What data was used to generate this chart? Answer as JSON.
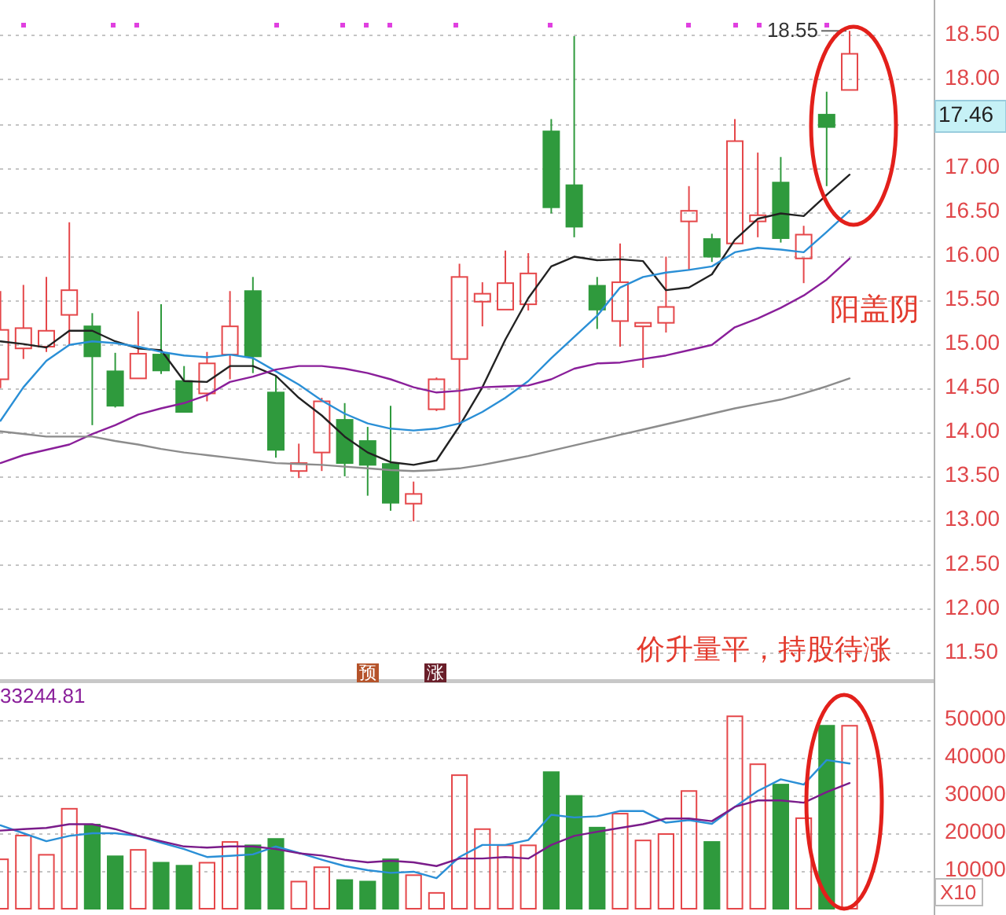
{
  "chart_data": [
    {
      "type": "candlestick",
      "categories": [
        null,
        null,
        null,
        null,
        null,
        null,
        null,
        null,
        null,
        null,
        null,
        null,
        null,
        null,
        null,
        null,
        null,
        null,
        null,
        null,
        null,
        null,
        null,
        null,
        null,
        null,
        null,
        null,
        null,
        null,
        null,
        null,
        null,
        null,
        null,
        null,
        null,
        null
      ],
      "ohlc": [
        [
          14.6,
          15.6,
          14.5,
          15.16
        ],
        [
          14.95,
          15.67,
          14.83,
          15.18
        ],
        [
          14.97,
          15.76,
          14.91,
          15.15
        ],
        [
          15.33,
          16.38,
          14.99,
          15.61
        ],
        [
          15.2,
          15.35,
          14.08,
          14.86
        ],
        [
          14.69,
          14.9,
          14.28,
          14.3
        ],
        [
          14.61,
          15.37,
          14.61,
          14.89
        ],
        [
          14.88,
          15.45,
          14.66,
          14.7
        ],
        [
          14.58,
          14.75,
          14.23,
          14.23
        ],
        [
          14.44,
          14.91,
          14.35,
          14.78
        ],
        [
          14.88,
          15.6,
          14.6,
          15.2
        ],
        [
          15.6,
          15.76,
          14.67,
          14.86
        ],
        [
          14.45,
          14.64,
          13.71,
          13.8
        ],
        [
          13.56,
          13.87,
          13.48,
          13.65
        ],
        [
          13.77,
          14.39,
          13.56,
          14.35
        ],
        [
          14.14,
          14.33,
          13.5,
          13.65
        ],
        [
          13.9,
          14.06,
          13.28,
          13.63
        ],
        [
          13.64,
          14.3,
          13.11,
          13.2
        ],
        [
          13.19,
          13.44,
          12.99,
          13.3
        ],
        [
          14.26,
          14.62,
          14.24,
          14.6
        ],
        [
          14.83,
          15.91,
          14.07,
          15.76
        ],
        [
          15.48,
          15.7,
          15.2,
          15.57
        ],
        [
          15.39,
          16.06,
          15.39,
          15.69
        ],
        [
          15.45,
          16.03,
          15.38,
          15.8
        ],
        [
          17.41,
          17.55,
          16.48,
          16.55
        ],
        [
          16.8,
          18.49,
          16.21,
          16.33
        ],
        [
          15.66,
          15.76,
          15.17,
          15.39
        ],
        [
          15.26,
          16.14,
          14.97,
          15.7
        ],
        [
          15.2,
          15.24,
          14.73,
          15.24
        ],
        [
          15.24,
          15.99,
          15.13,
          15.42
        ],
        [
          16.39,
          16.79,
          15.84,
          16.51
        ],
        [
          16.19,
          16.25,
          15.93,
          15.99
        ],
        [
          16.14,
          17.55,
          16.14,
          17.3
        ],
        [
          16.39,
          17.17,
          16.21,
          16.46
        ],
        [
          16.83,
          17.12,
          16.15,
          16.2
        ],
        [
          15.97,
          16.34,
          15.69,
          16.24
        ],
        [
          17.6,
          17.86,
          16.79,
          17.46
        ],
        [
          17.88,
          18.55,
          17.88,
          18.29
        ]
      ],
      "colors": [
        "#e5474a",
        "#e5474a",
        "#e5474a",
        "#e5474a",
        "#2f9a3d",
        "#2f9a3d",
        "#e5474a",
        "#2f9a3d",
        "#2f9a3d",
        "#e5474a",
        "#e5474a",
        "#2f9a3d",
        "#2f9a3d",
        "#e5474a",
        "#e5474a",
        "#2f9a3d",
        "#2f9a3d",
        "#2f9a3d",
        "#e5474a",
        "#e5474a",
        "#e5474a",
        "#e5474a",
        "#e5474a",
        "#e5474a",
        "#2f9a3d",
        "#2f9a3d",
        "#2f9a3d",
        "#e5474a",
        "#e5474a",
        "#e5474a",
        "#e5474a",
        "#2f9a3d",
        "#e5474a",
        "#e5474a",
        "#2f9a3d",
        "#e5474a",
        "#2f9a3d",
        "#e5474a"
      ],
      "series": [
        {
          "type": "line",
          "color": "#222222",
          "values": [
            15.03,
            15.0,
            14.96,
            15.15,
            15.15,
            15.03,
            14.95,
            14.93,
            14.58,
            14.57,
            14.75,
            14.75,
            14.64,
            14.39,
            14.19,
            13.95,
            13.77,
            13.66,
            13.63,
            13.68,
            14.07,
            14.51,
            15.05,
            15.52,
            15.88,
            15.99,
            15.95,
            15.96,
            15.94,
            15.61,
            15.64,
            15.79,
            16.18,
            16.42,
            16.48,
            16.45,
            16.69,
            16.92
          ]
        },
        {
          "type": "line",
          "color": "#2a8fd6",
          "values": [
            14.13,
            14.51,
            14.81,
            14.99,
            15.03,
            15.01,
            14.97,
            14.91,
            14.87,
            14.85,
            14.88,
            14.84,
            14.69,
            14.54,
            14.36,
            14.21,
            14.1,
            14.04,
            14.02,
            14.04,
            14.1,
            14.23,
            14.39,
            14.58,
            14.84,
            15.08,
            15.32,
            15.64,
            15.76,
            15.81,
            15.84,
            15.88,
            16.04,
            16.09,
            16.07,
            16.04,
            16.27,
            16.51
          ]
        },
        {
          "type": "line",
          "color": "#8a1f9a",
          "values": [
            13.65,
            13.74,
            13.8,
            13.86,
            13.98,
            14.08,
            14.2,
            14.27,
            14.33,
            14.42,
            14.57,
            14.63,
            14.71,
            14.75,
            14.75,
            14.72,
            14.67,
            14.6,
            14.51,
            14.45,
            14.47,
            14.51,
            14.52,
            14.53,
            14.6,
            14.72,
            14.78,
            14.79,
            14.83,
            14.87,
            14.93,
            14.99,
            15.19,
            15.29,
            15.41,
            15.55,
            15.73,
            15.97
          ]
        },
        {
          "type": "line",
          "color": "#8c8c8c",
          "values": [
            14.01,
            13.98,
            13.95,
            13.95,
            13.95,
            13.9,
            13.86,
            13.81,
            13.77,
            13.74,
            13.71,
            13.68,
            13.65,
            13.64,
            13.63,
            13.61,
            13.59,
            13.57,
            13.56,
            13.57,
            13.59,
            13.63,
            13.68,
            13.73,
            13.79,
            13.85,
            13.91,
            13.97,
            14.03,
            14.09,
            14.15,
            14.21,
            14.27,
            14.32,
            14.37,
            14.44,
            14.52,
            14.61
          ]
        }
      ],
      "ylim": [
        11.2,
        18.9
      ],
      "yticks": [
        {
          "value": 11.5,
          "label": "11.50"
        },
        {
          "value": 12,
          "label": "12.00"
        },
        {
          "value": 12.5,
          "label": "12.50"
        },
        {
          "value": 13,
          "label": "13.00"
        },
        {
          "value": 13.5,
          "label": "13.50"
        },
        {
          "value": 14,
          "label": "14.00"
        },
        {
          "value": 14.5,
          "label": "14.50"
        },
        {
          "value": 15,
          "label": "15.00"
        },
        {
          "value": 15.5,
          "label": "15.50"
        },
        {
          "value": 16,
          "label": "16.00"
        },
        {
          "value": 16.5,
          "label": "16.50"
        },
        {
          "value": 17,
          "label": "17.00"
        },
        {
          "value": 17.5,
          "label": null
        },
        {
          "value": 18,
          "label": "18.00"
        },
        {
          "value": 18.5,
          "label": "18.50"
        }
      ],
      "grid": "y",
      "tick_labels": "y",
      "annotations": [
        "18.55",
        "17.46",
        "阳盖阴",
        "价升量平，持股待涨",
        "预",
        "涨"
      ]
    },
    {
      "type": "bar",
      "categories": [
        null,
        null,
        null,
        null,
        null,
        null,
        null,
        null,
        null,
        null,
        null,
        null,
        null,
        null,
        null,
        null,
        null,
        null,
        null,
        null,
        null,
        null,
        null,
        null,
        null,
        null,
        null,
        null,
        null,
        null,
        null,
        null,
        null,
        null,
        null,
        null,
        null,
        null
      ],
      "series": [
        {
          "type": "bar",
          "values": [
            13300,
            19600,
            14500,
            26700,
            22500,
            14100,
            15800,
            12400,
            11600,
            12400,
            17900,
            17000,
            18700,
            7400,
            11200,
            7800,
            7400,
            13300,
            9100,
            4400,
            35600,
            21300,
            17000,
            17000,
            36400,
            30100,
            21700,
            25400,
            18300,
            20000,
            31400,
            17900,
            51200,
            38500,
            33100,
            24200,
            48700,
            48700
          ],
          "colors": [
            "#e5474a",
            "#e5474a",
            "#e5474a",
            "#e5474a",
            "#2f9a3d",
            "#2f9a3d",
            "#e5474a",
            "#2f9a3d",
            "#2f9a3d",
            "#e5474a",
            "#e5474a",
            "#2f9a3d",
            "#2f9a3d",
            "#e5474a",
            "#e5474a",
            "#2f9a3d",
            "#2f9a3d",
            "#2f9a3d",
            "#e5474a",
            "#e5474a",
            "#e5474a",
            "#e5474a",
            "#e5474a",
            "#e5474a",
            "#2f9a3d",
            "#2f9a3d",
            "#2f9a3d",
            "#e5474a",
            "#e5474a",
            "#e5474a",
            "#e5474a",
            "#2f9a3d",
            "#e5474a",
            "#e5474a",
            "#2f9a3d",
            "#e5474a",
            "#2f9a3d",
            "#e5474a"
          ]
        },
        {
          "type": "line",
          "color": "#2a8fd6",
          "values": [
            22100,
            20000,
            17900,
            19300,
            20000,
            20000,
            19300,
            17500,
            15800,
            13700,
            14000,
            14400,
            16500,
            14800,
            13000,
            11300,
            10200,
            9500,
            9800,
            8100,
            13700,
            16900,
            16900,
            18200,
            24900,
            24200,
            24500,
            25900,
            25900,
            22800,
            23500,
            22500,
            27000,
            31200,
            34300,
            32900,
            39400,
            38500
          ]
        },
        {
          "type": "line",
          "color": "#7a1c8a",
          "values": [
            20700,
            21100,
            21400,
            22400,
            22400,
            21100,
            19300,
            17900,
            16500,
            16200,
            16500,
            16500,
            15800,
            14700,
            14100,
            13000,
            12300,
            12700,
            12300,
            11300,
            13300,
            13300,
            13700,
            13300,
            16900,
            19300,
            20400,
            21400,
            22400,
            23900,
            23900,
            23200,
            27000,
            28700,
            28700,
            28100,
            30900,
            33300
          ]
        }
      ],
      "ylim": [
        0,
        60000
      ],
      "yticks": [
        10000,
        20000,
        30000,
        40000,
        50000
      ],
      "grid": "y",
      "tick_labels": "y",
      "annotations": [
        "33244.81",
        "X10"
      ]
    }
  ]
}
